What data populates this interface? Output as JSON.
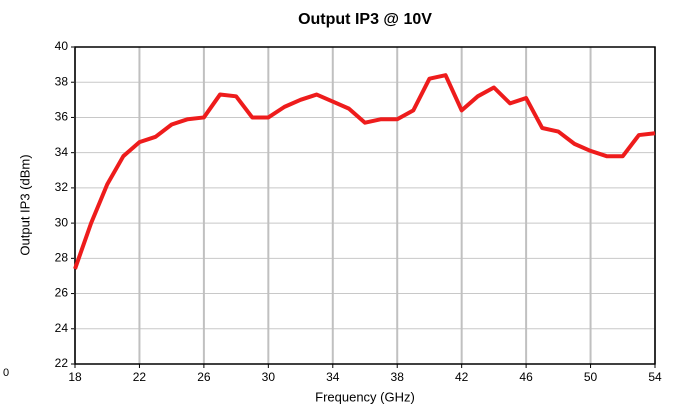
{
  "chart_data": {
    "type": "line",
    "title": "Output IP3 @ 10V",
    "xlabel": "Frequency (GHz)",
    "ylabel": "Output IP3 (dBm)",
    "annotation": "0",
    "x": [
      18,
      19,
      20,
      21,
      22,
      23,
      24,
      25,
      26,
      27,
      28,
      29,
      30,
      31,
      32,
      33,
      34,
      35,
      36,
      37,
      38,
      39,
      40,
      41,
      42,
      43,
      44,
      45,
      46,
      47,
      48,
      49,
      50,
      51,
      52,
      53,
      54
    ],
    "series": [
      {
        "name": "Output IP3",
        "color": "#ee1c1c",
        "values": [
          27.4,
          30.0,
          32.2,
          33.8,
          34.6,
          34.9,
          35.6,
          35.9,
          36.0,
          37.3,
          37.2,
          36.0,
          36.0,
          36.6,
          37.0,
          37.3,
          36.9,
          36.5,
          35.7,
          35.9,
          35.9,
          36.4,
          38.2,
          38.4,
          36.4,
          37.2,
          37.7,
          36.8,
          37.1,
          35.4,
          35.2,
          34.5,
          34.1,
          33.8,
          33.8,
          35.0,
          35.1
        ]
      }
    ],
    "xlim": [
      18,
      54
    ],
    "xticks": [
      18,
      22,
      26,
      30,
      34,
      38,
      42,
      46,
      50,
      54
    ],
    "ylim": [
      22,
      40
    ],
    "yticks": [
      22,
      24,
      26,
      28,
      30,
      32,
      34,
      36,
      38,
      40
    ],
    "grid": true
  }
}
